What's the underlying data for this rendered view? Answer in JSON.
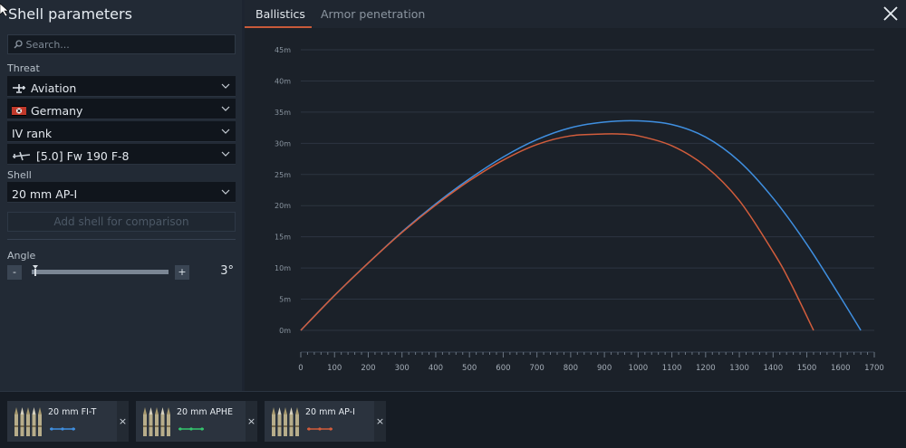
{
  "left_panel": {
    "title": "Shell parameters",
    "search_placeholder": "Search...",
    "threat_label": "Threat",
    "threat_type": "Aviation",
    "country": "Germany",
    "rank": "IV rank",
    "vehicle": "[5.0] Fw 190 F-8",
    "shell_label": "Shell",
    "shell": "20 mm AP-I",
    "add_shell_label": "Add shell for comparison",
    "angle_label": "Angle",
    "angle_minus": "-",
    "angle_plus": "+",
    "angle_value": "3°",
    "angle_fraction": 0.02
  },
  "tabs": {
    "ballistics": "Ballistics",
    "armor": "Armor penetration"
  },
  "icons": {
    "close": "close-icon",
    "search": "search-icon",
    "chevron": "chevron-down-icon",
    "plane": "plane-icon",
    "flag": "germany-flag-icon"
  },
  "chart_data": {
    "type": "line",
    "xlim": [
      0,
      1700
    ],
    "ylim": [
      0,
      45
    ],
    "x_ticks": [
      "0",
      "100",
      "200",
      "300",
      "400",
      "500",
      "600",
      "700",
      "800",
      "900",
      "1000",
      "1100",
      "1200",
      "1300",
      "1400",
      "1500",
      "1600",
      "1700"
    ],
    "y_ticks": [
      "0m",
      "5m",
      "10m",
      "15m",
      "20m",
      "25m",
      "30m",
      "35m",
      "40m",
      "45m"
    ],
    "grid": true,
    "series": [
      {
        "color": "#3f8fe0",
        "x": [
          0,
          100,
          200,
          300,
          400,
          500,
          600,
          700,
          800,
          900,
          1000,
          1100,
          1200,
          1300,
          1400,
          1500,
          1600,
          1660
        ],
        "y": [
          0,
          5.6,
          10.8,
          15.8,
          20.3,
          24.3,
          27.8,
          30.6,
          32.5,
          33.4,
          33.6,
          33.0,
          31.0,
          27.1,
          21.2,
          13.8,
          5.3,
          0
        ]
      },
      {
        "color": "#d25d3c",
        "x": [
          0,
          100,
          200,
          300,
          400,
          500,
          600,
          700,
          800,
          900,
          940,
          1000,
          1100,
          1200,
          1300,
          1400,
          1450,
          1520
        ],
        "y": [
          0,
          5.6,
          10.8,
          15.7,
          20.1,
          24.0,
          27.3,
          29.8,
          31.2,
          31.5,
          31.5,
          31.2,
          29.6,
          26.3,
          20.8,
          12.6,
          7.8,
          0
        ]
      }
    ]
  },
  "bottom_shells": [
    {
      "name": "20 mm FI-T",
      "color": "#3f8fe0",
      "close": "×"
    },
    {
      "name": "20 mm APHE",
      "color": "#35c46e",
      "close": "×"
    },
    {
      "name": "20 mm AP-I",
      "color": "#d25d3c",
      "close": "×"
    }
  ]
}
